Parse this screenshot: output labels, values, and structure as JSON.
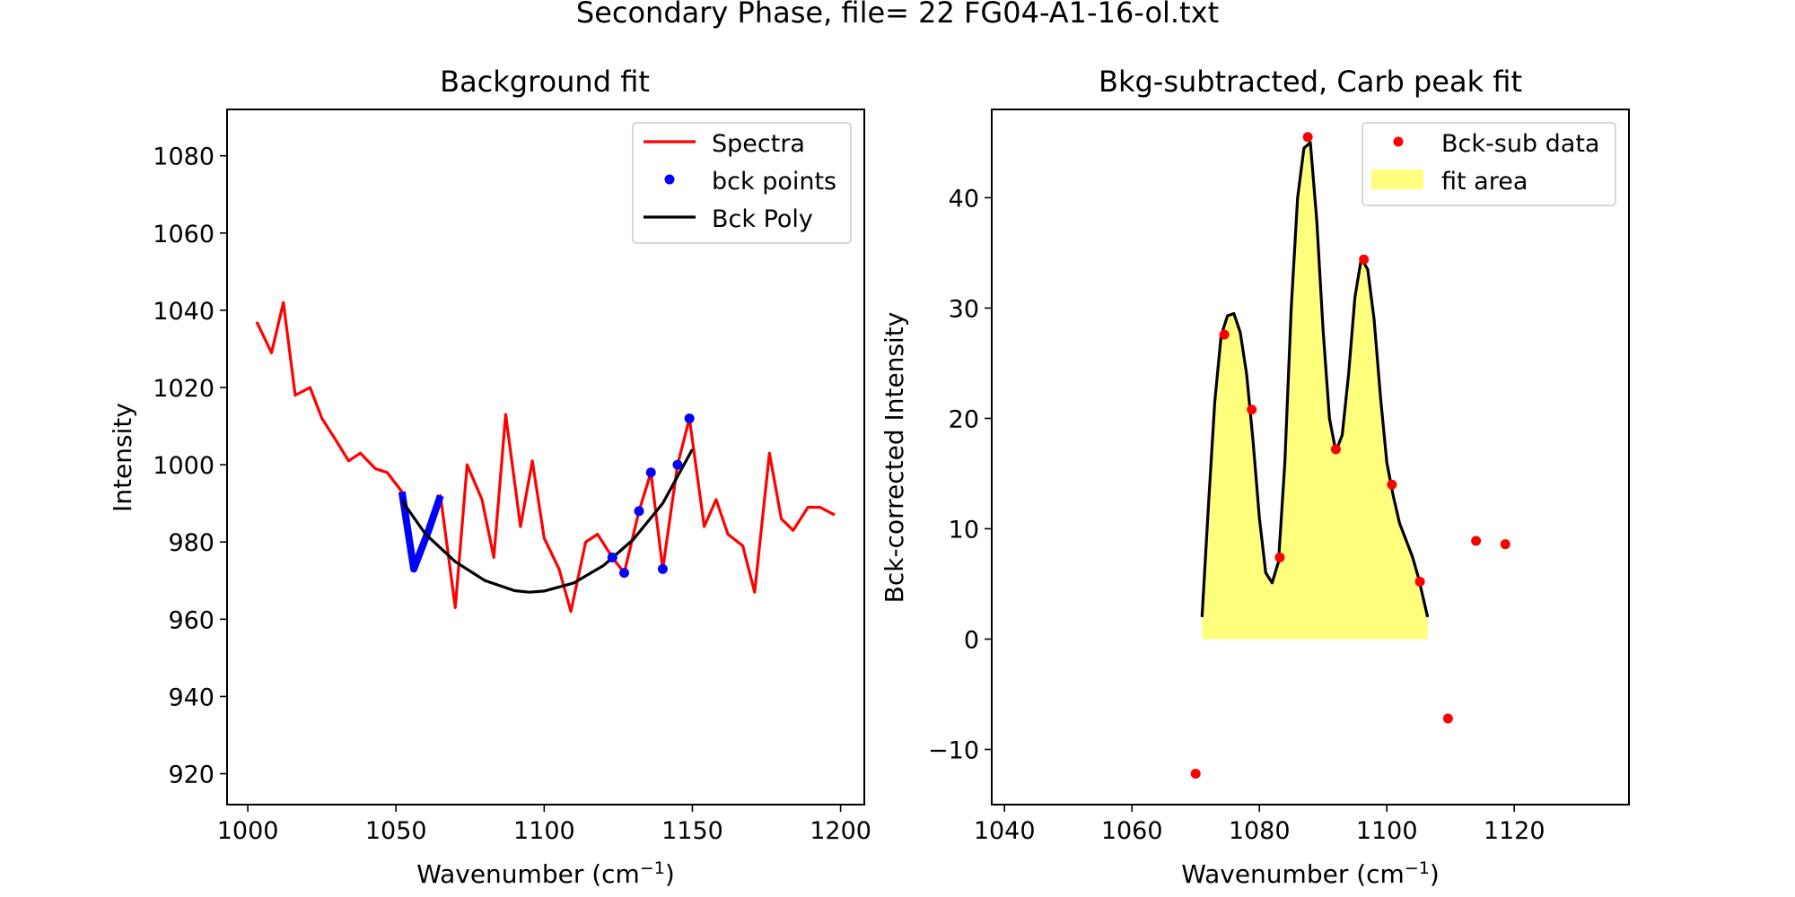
{
  "suptitle": "Secondary Phase, file= 22 FG04-A1-16-ol.txt",
  "chart_data": [
    {
      "type": "line",
      "title": "Background fit",
      "xlabel": "Wavenumber (cm",
      "xlabel_sup": "−1",
      "xlabel_end": ")",
      "ylabel": "Intensity",
      "xlim": [
        993,
        1208
      ],
      "ylim": [
        912,
        1092
      ],
      "xticks": [
        1000,
        1050,
        1100,
        1150,
        1200
      ],
      "yticks": [
        920,
        940,
        960,
        980,
        1000,
        1020,
        1040,
        1060,
        1080
      ],
      "legend_position": "top-right",
      "legend": [
        "Spectra",
        "bck points",
        "Bck Poly"
      ],
      "colors": {
        "spectra": "#ff0000",
        "bck_points": "#0000ff",
        "poly": "#000000"
      },
      "series": [
        {
          "name": "Spectra",
          "style": "line",
          "x": [
            1003,
            1008,
            1012,
            1016,
            1021,
            1025,
            1030,
            1034,
            1038,
            1043,
            1047,
            1052,
            1056,
            1061,
            1065,
            1070,
            1074,
            1079,
            1083,
            1087,
            1092,
            1096,
            1100,
            1105,
            1109,
            1114,
            1118,
            1123,
            1127,
            1132,
            1136,
            1140,
            1145,
            1149,
            1154,
            1158,
            1162,
            1167,
            1171,
            1176,
            1180,
            1184,
            1189,
            1193,
            1198
          ],
          "y": [
            1037,
            1029,
            1042,
            1018,
            1020,
            1012,
            1006,
            1001,
            1003,
            999,
            998,
            993,
            973,
            983,
            992,
            963,
            1000,
            991,
            976,
            1013,
            984,
            1001,
            981,
            973,
            962,
            980,
            982,
            976,
            972,
            988,
            998,
            973,
            1000,
            1012,
            984,
            991,
            982,
            979,
            967,
            1003,
            986,
            983,
            989,
            989,
            987
          ]
        },
        {
          "name": "bck points",
          "style": "points",
          "x": [
            1123,
            1127,
            1132,
            1136,
            1140,
            1145,
            1149
          ],
          "y": [
            976,
            972,
            988,
            998,
            973,
            1000,
            1012
          ]
        },
        {
          "name": "bck points (low segment)",
          "style": "thick-line",
          "x": [
            1052,
            1056,
            1061,
            1065
          ],
          "y": [
            993,
            973,
            983,
            992
          ]
        },
        {
          "name": "Bck Poly",
          "style": "line",
          "x": [
            1052,
            1060,
            1070,
            1080,
            1090,
            1095,
            1100,
            1110,
            1120,
            1130,
            1140,
            1150
          ],
          "y": [
            990.7,
            982.0,
            974.9,
            970.0,
            967.4,
            967.0,
            967.3,
            969.4,
            973.9,
            980.6,
            990.0,
            1004.0
          ]
        }
      ]
    },
    {
      "type": "scatter",
      "title": "Bkg-subtracted, Carb peak fit",
      "xlabel": "Wavenumber (cm",
      "xlabel_sup": "−1",
      "xlabel_end": ")",
      "ylabel": "Bck-corrected Intensity",
      "xlim": [
        1038,
        1138
      ],
      "ylim": [
        -15,
        48
      ],
      "xticks": [
        1040,
        1060,
        1080,
        1100,
        1120
      ],
      "ytick_values": [
        -10,
        0,
        10,
        20,
        30,
        40
      ],
      "ytick_labels": [
        "−10",
        "0",
        "10",
        "20",
        "30",
        "40"
      ],
      "legend_position": "top-right",
      "legend": [
        "Bck-sub data",
        "fit area"
      ],
      "colors": {
        "data": "#ff0000",
        "fit_area": "#ffff66",
        "fit_line": "#000000"
      },
      "series": [
        {
          "name": "Bck-sub data",
          "style": "points",
          "x": [
            1070,
            1074.5,
            1078.8,
            1083.2,
            1087.6,
            1092,
            1096.4,
            1100.8,
            1105.2,
            1109.6,
            1114,
            1118.6
          ],
          "y": [
            -12.2,
            27.6,
            20.8,
            7.4,
            45.5,
            17.2,
            34.4,
            14.0,
            5.2,
            -7.2,
            8.9,
            8.6
          ]
        },
        {
          "name": "fit area",
          "style": "fill-line",
          "x": [
            1071,
            1072,
            1073,
            1074,
            1075,
            1076,
            1077,
            1078,
            1079,
            1080,
            1081,
            1082,
            1083,
            1084,
            1085,
            1086,
            1087,
            1088,
            1089,
            1090,
            1091,
            1092,
            1093,
            1094,
            1095,
            1096,
            1097,
            1098,
            1099,
            1100,
            1101,
            1102,
            1103,
            1104,
            1105,
            1106.4
          ],
          "y": [
            2.0,
            12.0,
            21.5,
            27.5,
            29.3,
            29.5,
            27.8,
            24.0,
            18.0,
            11.0,
            6.0,
            5.1,
            7.0,
            16.0,
            30.0,
            40.0,
            44.5,
            45.0,
            38.0,
            28.0,
            20.0,
            17.0,
            18.5,
            24.0,
            31.0,
            34.5,
            33.5,
            29.0,
            22.0,
            16.0,
            13.0,
            10.5,
            9.0,
            7.5,
            5.5,
            2.0
          ]
        }
      ]
    }
  ]
}
